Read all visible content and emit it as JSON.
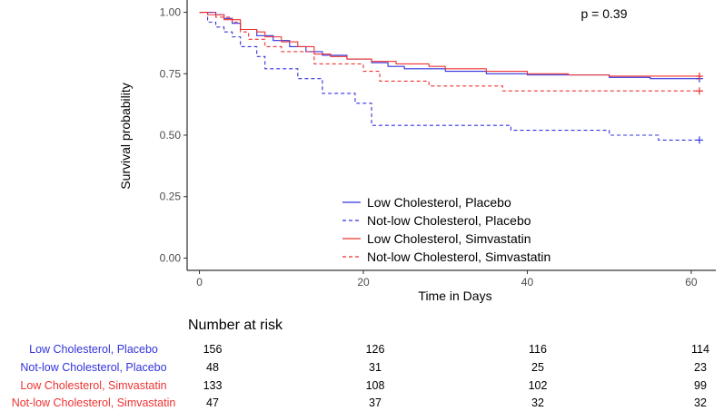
{
  "chart_data": {
    "type": "line",
    "subtype": "kaplan-meier",
    "xlabel": "Time in Days",
    "ylabel": "Survival probability",
    "xlim": [
      -1.5,
      63
    ],
    "ylim": [
      -0.05,
      1.05
    ],
    "x_ticks": [
      "0",
      "20",
      "40",
      "60"
    ],
    "y_ticks": [
      "0.00",
      "0.25",
      "0.50",
      "0.75",
      "1.00"
    ],
    "x_tick_values": [
      0,
      20,
      40,
      60
    ],
    "y_tick_values": [
      0,
      0.25,
      0.5,
      0.75,
      1.0
    ],
    "annotation": "p = 0.39",
    "legend_position": "bottom-center-inside",
    "series": [
      {
        "name": "Low Cholesterol, Placebo",
        "color": "#3333dd",
        "dash": "solid",
        "points": [
          [
            0,
            1.0
          ],
          [
            2,
            0.99
          ],
          [
            3,
            0.975
          ],
          [
            4,
            0.955
          ],
          [
            5,
            0.93
          ],
          [
            7,
            0.905
          ],
          [
            9,
            0.885
          ],
          [
            11,
            0.86
          ],
          [
            13,
            0.84
          ],
          [
            15,
            0.825
          ],
          [
            18,
            0.81
          ],
          [
            21,
            0.795
          ],
          [
            23,
            0.78
          ],
          [
            25,
            0.77
          ],
          [
            30,
            0.76
          ],
          [
            35,
            0.75
          ],
          [
            40,
            0.745
          ],
          [
            50,
            0.735
          ],
          [
            55,
            0.73
          ],
          [
            61,
            0.73
          ]
        ],
        "censor_x": [
          61
        ]
      },
      {
        "name": "Not-low Cholesterol, Placebo",
        "color": "#3333dd",
        "dash": "dashed",
        "points": [
          [
            0,
            1.0
          ],
          [
            1,
            0.96
          ],
          [
            2,
            0.94
          ],
          [
            3,
            0.92
          ],
          [
            4,
            0.9
          ],
          [
            5,
            0.86
          ],
          [
            7,
            0.82
          ],
          [
            8,
            0.77
          ],
          [
            12,
            0.73
          ],
          [
            15,
            0.67
          ],
          [
            19,
            0.63
          ],
          [
            21,
            0.54
          ],
          [
            38,
            0.52
          ],
          [
            50,
            0.5
          ],
          [
            56,
            0.48
          ],
          [
            61,
            0.48
          ]
        ],
        "censor_x": [
          61
        ]
      },
      {
        "name": "Low Cholesterol, Simvastatin",
        "color": "#ee3333",
        "dash": "solid",
        "points": [
          [
            0,
            1.0
          ],
          [
            1,
            0.99
          ],
          [
            3,
            0.97
          ],
          [
            5,
            0.93
          ],
          [
            7,
            0.92
          ],
          [
            8,
            0.9
          ],
          [
            10,
            0.88
          ],
          [
            12,
            0.86
          ],
          [
            14,
            0.83
          ],
          [
            16,
            0.82
          ],
          [
            18,
            0.81
          ],
          [
            21,
            0.8
          ],
          [
            24,
            0.79
          ],
          [
            28,
            0.78
          ],
          [
            30,
            0.77
          ],
          [
            35,
            0.76
          ],
          [
            40,
            0.75
          ],
          [
            45,
            0.745
          ],
          [
            50,
            0.74
          ],
          [
            61,
            0.74
          ]
        ],
        "censor_x": [
          61
        ]
      },
      {
        "name": "Not-low Cholesterol, Simvastatin",
        "color": "#ee3333",
        "dash": "dashed",
        "points": [
          [
            0,
            1.0
          ],
          [
            2,
            0.98
          ],
          [
            4,
            0.96
          ],
          [
            5,
            0.92
          ],
          [
            6,
            0.89
          ],
          [
            8,
            0.86
          ],
          [
            10,
            0.84
          ],
          [
            14,
            0.79
          ],
          [
            20,
            0.76
          ],
          [
            22,
            0.72
          ],
          [
            28,
            0.7
          ],
          [
            37,
            0.68
          ],
          [
            61,
            0.68
          ]
        ],
        "censor_x": [
          61
        ]
      }
    ]
  },
  "risk_table": {
    "title": "Number at risk",
    "times": [
      0,
      20,
      40,
      60
    ],
    "rows": [
      {
        "label": "Low Cholesterol, Placebo",
        "color": "#3333dd",
        "values": [
          "156",
          "126",
          "116",
          "114"
        ]
      },
      {
        "label": "Not-low Cholesterol, Placebo",
        "color": "#3333dd",
        "values": [
          "48",
          "31",
          "25",
          "23"
        ]
      },
      {
        "label": "Low Cholesterol, Simvastatin",
        "color": "#ee3333",
        "values": [
          "133",
          "108",
          "102",
          "99"
        ]
      },
      {
        "label": "Not-low Cholesterol, Simvastatin",
        "color": "#ee3333",
        "values": [
          "47",
          "37",
          "32",
          "32"
        ]
      }
    ]
  }
}
